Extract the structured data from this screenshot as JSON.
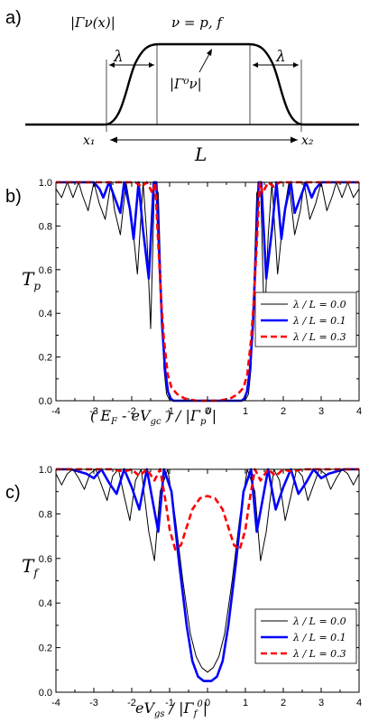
{
  "panel_labels": [
    "a)",
    "b)",
    "c)"
  ],
  "schematic": {
    "title_left": "|Γν(x)|",
    "title_right": "ν = p, f",
    "lambda_left": "λ",
    "lambda_right": "λ",
    "plateau_label": "|Γ⁰ν|",
    "x1_label": "x₁",
    "x2_label": "x₂",
    "length_label": "L"
  },
  "chart_data": [
    {
      "type": "line",
      "panel": "b)",
      "title": "",
      "xlabel": "( E_F - eV_gc ) / |Γ_p⁰|",
      "ylabel": "T_p",
      "xlim": [
        -4,
        4
      ],
      "ylim": [
        0,
        1
      ],
      "xticks": [
        "-4",
        "-3",
        "-2",
        "-1",
        "0",
        "1",
        "2",
        "3",
        "4"
      ],
      "yticks": [
        "0.0",
        "0.2",
        "0.4",
        "0.6",
        "0.8",
        "1.0"
      ],
      "grid": false,
      "legend": "center-right",
      "legend_entries": [
        "λ / L = 0.0",
        "λ / L = 0.1",
        "λ / L = 0.3"
      ],
      "series": [
        {
          "name": "λ / L = 0.0",
          "color": "#000000",
          "style": "solid-thin",
          "x": [
            -4,
            -3.85,
            -3.7,
            -3.55,
            -3.4,
            -3.3,
            -3.15,
            -3.0,
            -2.85,
            -2.7,
            -2.55,
            -2.45,
            -2.3,
            -2.15,
            -2.0,
            -1.85,
            -1.7,
            -1.6,
            -1.5,
            -1.4,
            -1.3,
            -1.22,
            -1.15,
            -1.08,
            -1.02,
            -0.98,
            -0.9,
            -0.5,
            0,
            0.5,
            0.9,
            0.98,
            1.02,
            1.08,
            1.15,
            1.22,
            1.3,
            1.4,
            1.5,
            1.6,
            1.7,
            1.85,
            2.0,
            2.15,
            2.3,
            2.45,
            2.55,
            2.7,
            2.85,
            3.0,
            3.15,
            3.3,
            3.4,
            3.55,
            3.7,
            3.85,
            4
          ],
          "y": [
            0.97,
            0.93,
            1.0,
            0.93,
            1.0,
            0.94,
            0.87,
            1.0,
            0.9,
            0.83,
            1.0,
            0.87,
            0.76,
            1.0,
            0.84,
            0.58,
            1.0,
            0.75,
            0.33,
            1.0,
            0.95,
            0.5,
            0.15,
            0.03,
            0.01,
            0.0,
            0.0,
            0.0,
            0.0,
            0.0,
            0.0,
            0.0,
            0.01,
            0.03,
            0.15,
            0.5,
            0.95,
            1.0,
            0.33,
            0.75,
            1.0,
            0.58,
            0.84,
            1.0,
            0.76,
            0.87,
            1.0,
            0.83,
            0.9,
            1.0,
            0.87,
            0.94,
            1.0,
            0.93,
            1.0,
            0.93,
            0.97
          ]
        },
        {
          "name": "λ / L = 0.1",
          "color": "#0000ff",
          "style": "solid-thick",
          "x": [
            -4,
            -3.5,
            -3.0,
            -2.85,
            -2.75,
            -2.6,
            -2.45,
            -2.3,
            -2.2,
            -2.05,
            -1.95,
            -1.82,
            -1.7,
            -1.55,
            -1.42,
            -1.35,
            -1.28,
            -1.2,
            -1.12,
            -1.04,
            -0.97,
            -0.9,
            -0.5,
            0,
            0.5,
            0.9,
            0.97,
            1.04,
            1.12,
            1.2,
            1.28,
            1.35,
            1.42,
            1.55,
            1.7,
            1.82,
            1.95,
            2.05,
            2.2,
            2.3,
            2.45,
            2.6,
            2.75,
            2.85,
            3.0,
            3.5,
            4
          ],
          "y": [
            1.0,
            1.0,
            1.0,
            0.97,
            0.93,
            1.0,
            0.93,
            0.86,
            1.0,
            0.88,
            0.74,
            1.0,
            0.78,
            0.56,
            1.0,
            1.0,
            0.7,
            0.35,
            0.14,
            0.04,
            0.01,
            0.0,
            0.0,
            0.0,
            0.0,
            0.0,
            0.01,
            0.04,
            0.14,
            0.35,
            0.7,
            1.0,
            1.0,
            0.56,
            0.78,
            1.0,
            0.74,
            0.88,
            1.0,
            0.86,
            0.93,
            1.0,
            0.93,
            0.97,
            1.0,
            1.0,
            1.0
          ]
        },
        {
          "name": "λ / L = 0.3",
          "color": "#ff0000",
          "style": "dashed",
          "x": [
            -4,
            -2.5,
            -1.9,
            -1.75,
            -1.6,
            -1.45,
            -1.38,
            -1.3,
            -1.22,
            -1.15,
            -1.05,
            -0.95,
            -0.8,
            -0.6,
            -0.3,
            0,
            0.3,
            0.6,
            0.8,
            0.95,
            1.05,
            1.15,
            1.22,
            1.3,
            1.38,
            1.45,
            1.6,
            1.75,
            1.9,
            2.5,
            4
          ],
          "y": [
            1.0,
            1.0,
            1.0,
            0.98,
            1.0,
            0.95,
            1.0,
            0.72,
            0.45,
            0.28,
            0.12,
            0.06,
            0.03,
            0.01,
            0.0,
            0.0,
            0.0,
            0.01,
            0.03,
            0.06,
            0.12,
            0.28,
            0.45,
            0.72,
            1.0,
            0.95,
            1.0,
            0.98,
            1.0,
            1.0,
            1.0
          ]
        }
      ]
    },
    {
      "type": "line",
      "panel": "c)",
      "title": "",
      "xlabel": "eV_gs / |Γ_f⁰|",
      "ylabel": "T_f",
      "xlim": [
        -4,
        4
      ],
      "ylim": [
        0,
        1
      ],
      "xticks": [
        "-4",
        "-3",
        "-2",
        "-1",
        "0",
        "1",
        "2",
        "3",
        "4"
      ],
      "yticks": [
        "0.0",
        "0.2",
        "0.4",
        "0.6",
        "0.8",
        "1.0"
      ],
      "grid": false,
      "legend": "lower-right",
      "legend_entries": [
        "λ / L = 0.0",
        "λ / L = 0.1",
        "λ / L = 0.3"
      ],
      "series": [
        {
          "name": "λ / L = 0.0",
          "color": "#000000",
          "style": "solid-thin",
          "x": [
            -4,
            -3.85,
            -3.7,
            -3.55,
            -3.4,
            -3.25,
            -3.1,
            -2.95,
            -2.8,
            -2.65,
            -2.5,
            -2.35,
            -2.2,
            -2.05,
            -1.9,
            -1.75,
            -1.55,
            -1.4,
            -1.25,
            -1.05,
            -0.85,
            -0.65,
            -0.45,
            -0.3,
            -0.15,
            0,
            0.15,
            0.3,
            0.45,
            0.65,
            0.85,
            1.05,
            1.25,
            1.4,
            1.55,
            1.75,
            1.9,
            2.05,
            2.2,
            2.35,
            2.5,
            2.65,
            2.8,
            2.95,
            3.1,
            3.25,
            3.4,
            3.55,
            3.7,
            3.85,
            4
          ],
          "y": [
            0.98,
            0.93,
            0.98,
            1.0,
            0.96,
            0.91,
            0.98,
            1.0,
            0.93,
            0.86,
            0.97,
            1.0,
            0.88,
            0.77,
            0.95,
            1.0,
            0.72,
            0.59,
            0.9,
            1.0,
            0.78,
            0.5,
            0.26,
            0.16,
            0.11,
            0.09,
            0.11,
            0.16,
            0.26,
            0.5,
            0.78,
            1.0,
            0.9,
            0.59,
            0.72,
            1.0,
            0.95,
            0.77,
            0.88,
            1.0,
            0.97,
            0.86,
            0.93,
            1.0,
            0.98,
            0.91,
            0.96,
            1.0,
            0.98,
            0.93,
            0.98
          ]
        },
        {
          "name": "λ / L = 0.1",
          "color": "#0000ff",
          "style": "solid-thick",
          "x": [
            -4,
            -3.6,
            -3.2,
            -3.0,
            -2.8,
            -2.6,
            -2.4,
            -2.2,
            -2.0,
            -1.8,
            -1.6,
            -1.45,
            -1.3,
            -1.15,
            -0.95,
            -0.75,
            -0.55,
            -0.4,
            -0.25,
            -0.1,
            0,
            0.1,
            0.25,
            0.4,
            0.55,
            0.75,
            0.95,
            1.15,
            1.3,
            1.45,
            1.6,
            1.8,
            2.0,
            2.2,
            2.4,
            2.6,
            2.8,
            3.0,
            3.2,
            3.6,
            4
          ],
          "y": [
            1.0,
            1.0,
            0.98,
            0.96,
            1.0,
            0.94,
            0.89,
            1.0,
            0.92,
            0.82,
            1.0,
            0.86,
            0.72,
            1.0,
            0.9,
            0.58,
            0.3,
            0.14,
            0.07,
            0.05,
            0.05,
            0.05,
            0.07,
            0.14,
            0.3,
            0.58,
            0.9,
            1.0,
            0.72,
            0.86,
            1.0,
            0.82,
            0.92,
            1.0,
            0.89,
            0.94,
            1.0,
            0.96,
            0.98,
            1.0,
            1.0
          ]
        },
        {
          "name": "λ / L = 0.3",
          "color": "#ff0000",
          "style": "dashed",
          "x": [
            -4,
            -3.0,
            -2.5,
            -2.2,
            -2.0,
            -1.8,
            -1.6,
            -1.4,
            -1.25,
            -1.1,
            -1.0,
            -0.85,
            -0.7,
            -0.55,
            -0.4,
            -0.2,
            0,
            0.2,
            0.4,
            0.55,
            0.7,
            0.85,
            1.0,
            1.1,
            1.25,
            1.4,
            1.6,
            1.8,
            2.0,
            2.2,
            2.5,
            3.0,
            4
          ],
          "y": [
            1.0,
            1.0,
            1.0,
            0.99,
            1.0,
            0.97,
            1.0,
            0.95,
            1.0,
            0.85,
            0.73,
            0.64,
            0.66,
            0.74,
            0.82,
            0.87,
            0.88,
            0.87,
            0.82,
            0.74,
            0.66,
            0.64,
            0.73,
            0.85,
            1.0,
            0.95,
            1.0,
            0.97,
            1.0,
            0.99,
            1.0,
            1.0,
            1.0
          ]
        }
      ]
    }
  ]
}
